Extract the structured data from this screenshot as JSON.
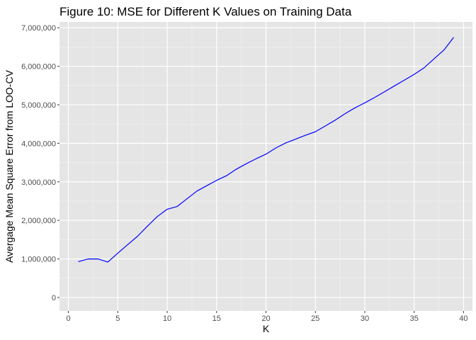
{
  "chart_data": {
    "type": "line",
    "title": "Figure 10: MSE for Different K Values on Training Data",
    "xlabel": "K",
    "ylabel": "Avergage Mean Square Error from LOO-CV",
    "xlim": [
      -0.9,
      40.9
    ],
    "ylim": [
      -350000,
      7150000
    ],
    "x_ticks": [
      0,
      5,
      10,
      15,
      20,
      25,
      30,
      35,
      40
    ],
    "y_ticks": [
      0,
      1000000,
      2000000,
      3000000,
      4000000,
      5000000,
      6000000,
      7000000
    ],
    "y_tick_labels": [
      "0",
      "1,000,000",
      "2,000,000",
      "3,000,000",
      "4,000,000",
      "5,000,000",
      "6,000,000",
      "7,000,000"
    ],
    "grid": true,
    "background": "#e5e5e5",
    "line_color": "#0000ff",
    "series": [
      {
        "x": [
          1,
          2,
          3,
          4,
          5,
          6,
          7,
          8,
          9,
          10,
          11,
          12,
          13,
          14,
          15,
          16,
          17,
          18,
          19,
          20,
          21,
          22,
          23,
          24,
          25,
          26,
          27,
          28,
          29,
          30,
          31,
          32,
          33,
          34,
          35,
          36,
          37,
          38,
          39
        ],
        "values": [
          930000,
          1000000,
          1000000,
          920000,
          1150000,
          1370000,
          1590000,
          1850000,
          2100000,
          2290000,
          2360000,
          2560000,
          2760000,
          2900000,
          3040000,
          3160000,
          3330000,
          3470000,
          3600000,
          3720000,
          3880000,
          4010000,
          4110000,
          4210000,
          4300000,
          4450000,
          4600000,
          4770000,
          4920000,
          5050000,
          5190000,
          5340000,
          5490000,
          5640000,
          5790000,
          5960000,
          6190000,
          6420000,
          6750000
        ]
      }
    ]
  }
}
